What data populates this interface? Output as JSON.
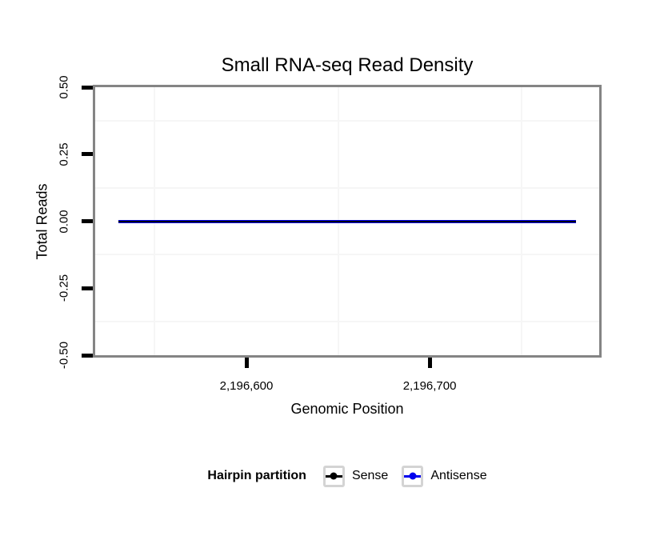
{
  "chart_data": {
    "type": "line",
    "title": "Small RNA-seq Read Density",
    "xlabel": "Genomic Position",
    "ylabel": "Total Reads",
    "xlim": [
      2196517.5,
      2196792.5
    ],
    "ylim": [
      -0.5,
      0.5
    ],
    "xticks": [
      {
        "value": 2196600,
        "label": "2,196,600"
      },
      {
        "value": 2196700,
        "label": "2,196,700"
      }
    ],
    "yticks": [
      {
        "value": 0.5,
        "label": "0.50"
      },
      {
        "value": 0.25,
        "label": "0.25"
      },
      {
        "value": 0.0,
        "label": "0.00"
      },
      {
        "value": -0.25,
        "label": "-0.25"
      },
      {
        "value": -0.5,
        "label": "-0.50"
      }
    ],
    "x_minor_gridlines": [
      2196550,
      2196650,
      2196750
    ],
    "y_minor_gridlines": [
      0.375,
      0.125,
      -0.125,
      -0.375
    ],
    "grid_note": "only faint minor gridlines visible; white panel background",
    "series": [
      {
        "name": "Antisense",
        "color": "#0000EE",
        "linewidth": 4,
        "x": [
          2196530,
          2196780
        ],
        "y": [
          0,
          0
        ]
      },
      {
        "name": "Sense",
        "color": "#000000",
        "linewidth": 2,
        "x": [
          2196530,
          2196780
        ],
        "y": [
          0,
          0
        ]
      }
    ],
    "legend": {
      "title": "Hairpin partition",
      "position": "bottom",
      "entries": [
        {
          "label": "Sense",
          "color": "#000000"
        },
        {
          "label": "Antisense",
          "color": "#0000EE"
        }
      ]
    },
    "colors": {
      "panel_border": "#848484",
      "tick": "#000000",
      "minor_grid": "#f6f6f6",
      "legend_key_border": "#d4d4d4",
      "text": "#000000",
      "background": "#ffffff"
    }
  }
}
